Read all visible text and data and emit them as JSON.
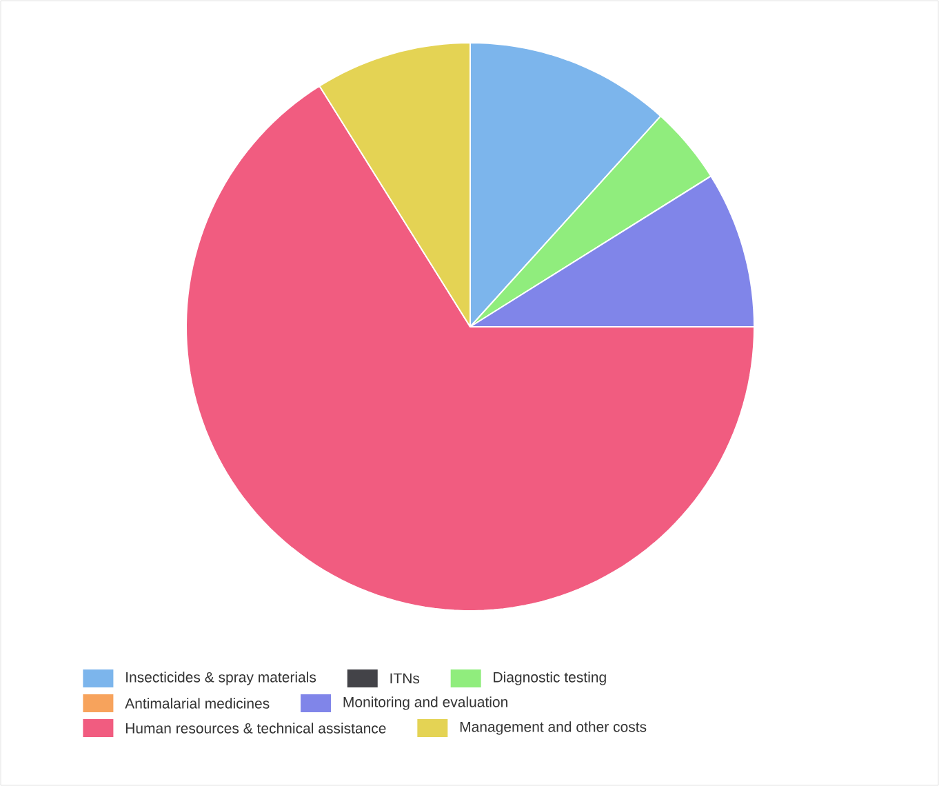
{
  "chart_data": {
    "type": "pie",
    "categories": [
      "Insecticides & spray materials",
      "ITNs",
      "Diagnostic testing",
      "Antimalarial medicines",
      "Monitoring and evaluation",
      "Human resources & technical assistance",
      "Management and other costs"
    ],
    "values": [
      11.7,
      0,
      4.4,
      0,
      8.9,
      66.1,
      8.9
    ],
    "colors": [
      "#7cb5ec",
      "#434348",
      "#90ed7d",
      "#f7a35c",
      "#8085e9",
      "#f15c80",
      "#e4d354"
    ],
    "legend": "bottom"
  }
}
